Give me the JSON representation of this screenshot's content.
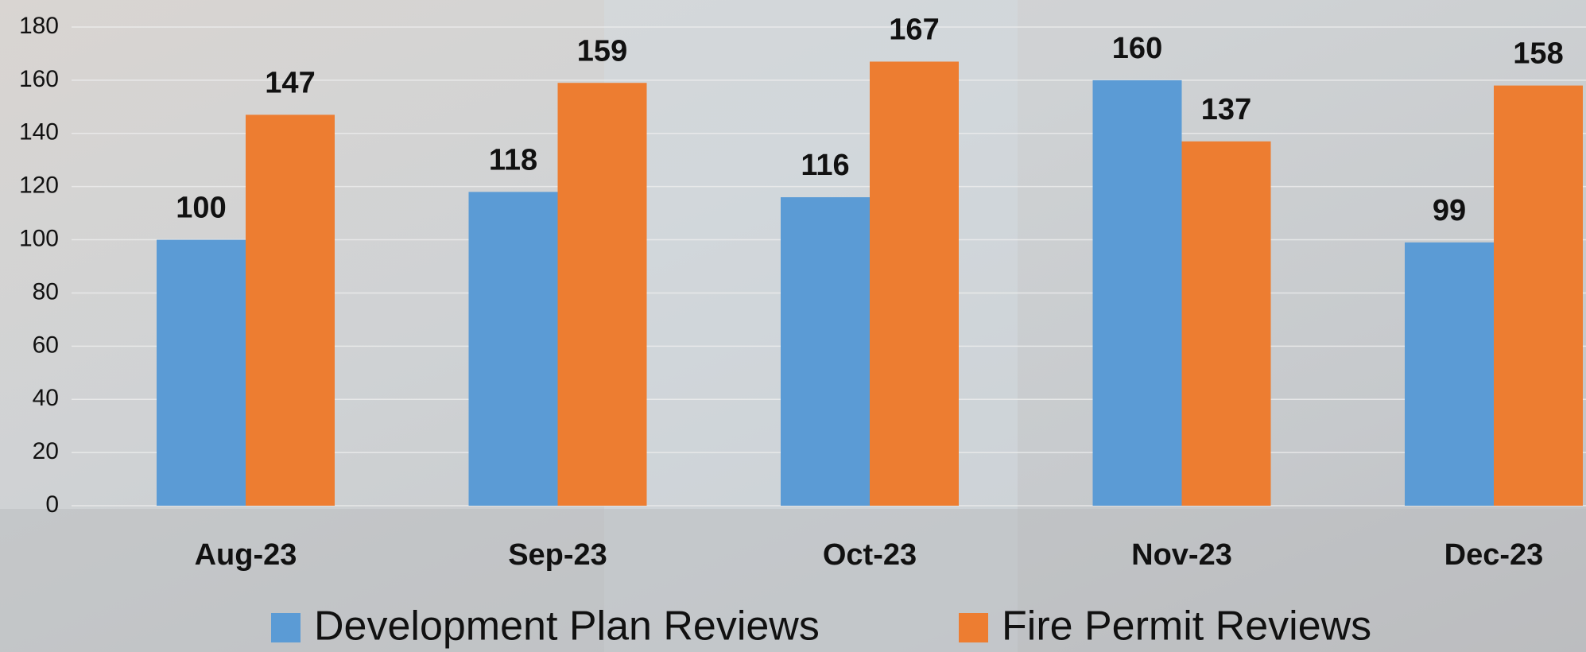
{
  "chart_data": {
    "type": "bar",
    "categories": [
      "Aug-23",
      "Sep-23",
      "Oct-23",
      "Nov-23",
      "Dec-23"
    ],
    "series": [
      {
        "name": "Development Plan Reviews",
        "color": "#5b9bd5",
        "values": [
          100,
          118,
          116,
          160,
          99
        ]
      },
      {
        "name": "Fire Permit Reviews",
        "color": "#ed7d31",
        "values": [
          147,
          159,
          167,
          137,
          158
        ]
      }
    ],
    "ylim": [
      0,
      180
    ],
    "yticks": [
      0,
      20,
      40,
      60,
      80,
      100,
      120,
      140,
      160,
      180
    ],
    "grid": true,
    "legend": "bottom"
  }
}
